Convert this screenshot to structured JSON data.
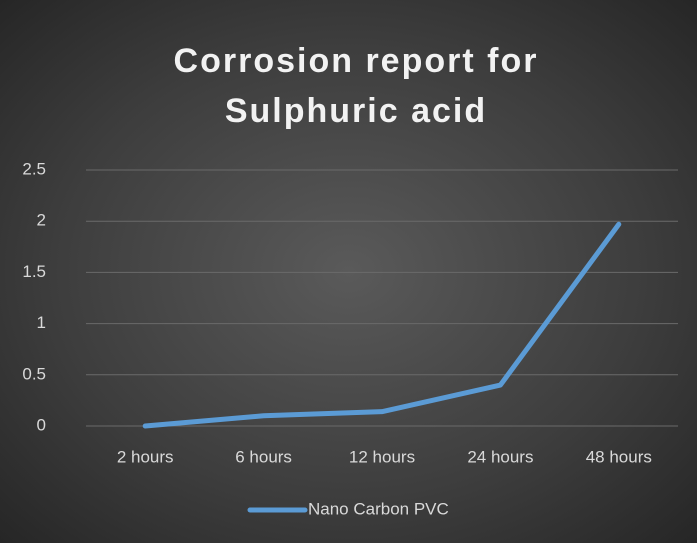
{
  "chart_data": {
    "type": "line",
    "title": "Corrosion report for Sulphuric acid",
    "categories": [
      "2 hours",
      "6 hours",
      "12 hours",
      "24 hours",
      "48 hours"
    ],
    "series": [
      {
        "name": "Nano Carbon PVC",
        "color": "#5b9bd5",
        "values": [
          0,
          0.1,
          0.14,
          0.4,
          1.97
        ]
      }
    ],
    "ylim": [
      0,
      2.5
    ],
    "yticks": [
      0,
      0.5,
      1,
      1.5,
      2,
      2.5
    ],
    "grid": true,
    "legend": "bottom"
  }
}
